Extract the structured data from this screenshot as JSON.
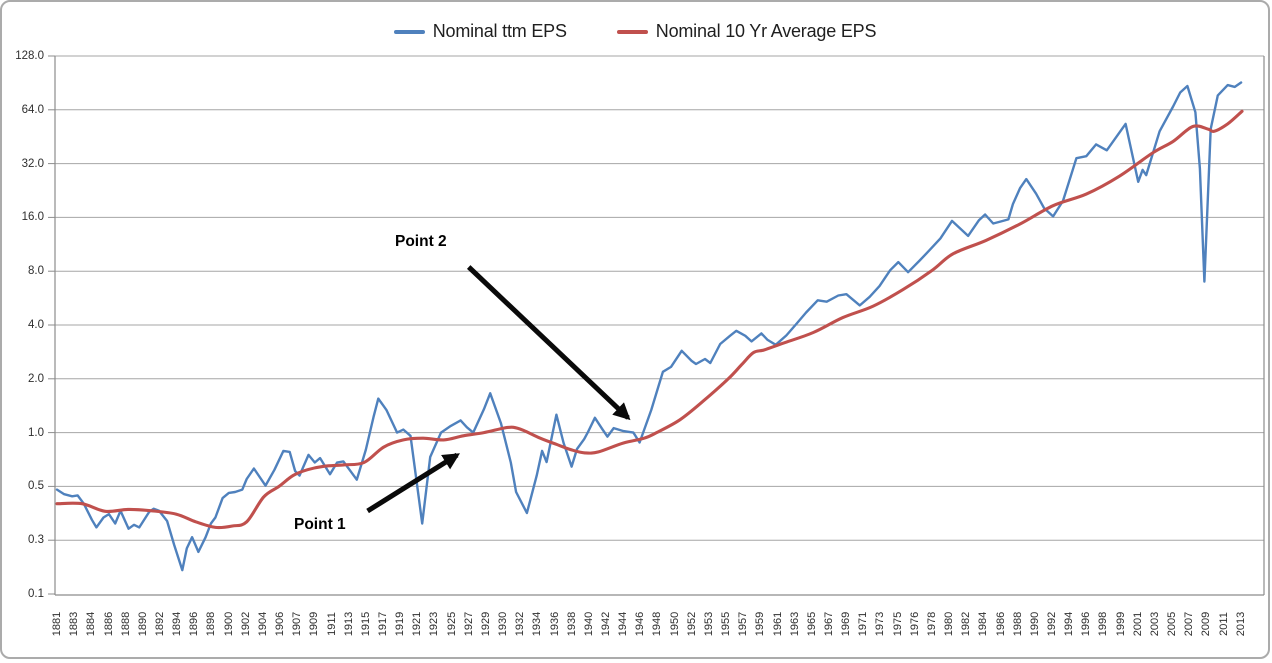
{
  "chart_data": {
    "type": "line",
    "title": "",
    "legend_position": "top",
    "grid": "horizontal-only",
    "x_axis": {
      "start_year": 1881,
      "end_year": 2013,
      "tick_labels": [
        "1881",
        "1883",
        "1884",
        "1886",
        "1888",
        "1890",
        "1892",
        "1894",
        "1896",
        "1898",
        "1900",
        "1902",
        "1904",
        "1906",
        "1907",
        "1909",
        "1911",
        "1913",
        "1915",
        "1917",
        "1919",
        "1921",
        "1923",
        "1925",
        "1927",
        "1929",
        "1930",
        "1932",
        "1934",
        "1936",
        "1938",
        "1940",
        "1942",
        "1944",
        "1946",
        "1948",
        "1950",
        "1952",
        "1953",
        "1955",
        "1957",
        "1959",
        "1961",
        "1963",
        "1965",
        "1967",
        "1969",
        "1971",
        "1973",
        "1975",
        "1976",
        "1978",
        "1980",
        "1982",
        "1984",
        "1986",
        "1988",
        "1990",
        "1992",
        "1994",
        "1996",
        "1998",
        "1999",
        "2001",
        "2003",
        "2005",
        "2007",
        "2009",
        "2011",
        "2013"
      ]
    },
    "y_axis": {
      "scale": "log2",
      "tick_labels": [
        "128.0",
        "64.0",
        "32.0",
        "16.0",
        "8.0",
        "4.0",
        "2.0",
        "1.0",
        "0.5",
        "0.3",
        "0.1"
      ],
      "tick_values": [
        128,
        64,
        32,
        16,
        8,
        4,
        2,
        1,
        0.5,
        0.25,
        0.125
      ],
      "ylim": [
        0.125,
        128
      ]
    },
    "series": [
      {
        "name": "Nominal ttm EPS",
        "color": "#4F81BD",
        "points": [
          [
            1881.0,
            0.48
          ],
          [
            1881.8,
            0.452
          ],
          [
            1882.7,
            0.44
          ],
          [
            1883.3,
            0.445
          ],
          [
            1884.0,
            0.4
          ],
          [
            1884.9,
            0.325
          ],
          [
            1885.4,
            0.295
          ],
          [
            1886.2,
            0.335
          ],
          [
            1886.8,
            0.35
          ],
          [
            1887.5,
            0.31
          ],
          [
            1888.1,
            0.365
          ],
          [
            1889.0,
            0.29
          ],
          [
            1889.6,
            0.305
          ],
          [
            1890.2,
            0.295
          ],
          [
            1891.3,
            0.36
          ],
          [
            1891.8,
            0.375
          ],
          [
            1892.4,
            0.365
          ],
          [
            1893.3,
            0.32
          ],
          [
            1894.1,
            0.235
          ],
          [
            1895.0,
            0.17
          ],
          [
            1895.5,
            0.225
          ],
          [
            1896.1,
            0.26
          ],
          [
            1896.8,
            0.215
          ],
          [
            1897.6,
            0.26
          ],
          [
            1898.2,
            0.31
          ],
          [
            1898.7,
            0.335
          ],
          [
            1899.5,
            0.43
          ],
          [
            1900.2,
            0.46
          ],
          [
            1900.9,
            0.465
          ],
          [
            1901.7,
            0.48
          ],
          [
            1902.2,
            0.55
          ],
          [
            1903.0,
            0.63
          ],
          [
            1904.3,
            0.505
          ],
          [
            1905.3,
            0.62
          ],
          [
            1906.3,
            0.79
          ],
          [
            1907.0,
            0.78
          ],
          [
            1907.6,
            0.61
          ],
          [
            1908.1,
            0.575
          ],
          [
            1909.1,
            0.75
          ],
          [
            1909.8,
            0.68
          ],
          [
            1910.4,
            0.72
          ],
          [
            1911.5,
            0.585
          ],
          [
            1912.3,
            0.68
          ],
          [
            1913.0,
            0.69
          ],
          [
            1914.5,
            0.545
          ],
          [
            1915.5,
            0.8
          ],
          [
            1916.4,
            1.24
          ],
          [
            1916.9,
            1.55
          ],
          [
            1917.8,
            1.34
          ],
          [
            1919.0,
            1.0
          ],
          [
            1919.7,
            1.04
          ],
          [
            1920.5,
            0.96
          ],
          [
            1921.4,
            0.44
          ],
          [
            1921.8,
            0.31
          ],
          [
            1922.7,
            0.73
          ],
          [
            1923.9,
            1.0
          ],
          [
            1925.0,
            1.09
          ],
          [
            1926.1,
            1.17
          ],
          [
            1926.8,
            1.07
          ],
          [
            1927.5,
            1.0
          ],
          [
            1928.7,
            1.35
          ],
          [
            1929.4,
            1.66
          ],
          [
            1930.6,
            1.13
          ],
          [
            1931.7,
            0.68
          ],
          [
            1932.3,
            0.465
          ],
          [
            1933.5,
            0.355
          ],
          [
            1934.6,
            0.575
          ],
          [
            1935.2,
            0.79
          ],
          [
            1935.7,
            0.685
          ],
          [
            1936.8,
            1.26
          ],
          [
            1937.6,
            0.875
          ],
          [
            1938.5,
            0.645
          ],
          [
            1939.1,
            0.81
          ],
          [
            1939.9,
            0.92
          ],
          [
            1940.3,
            1.0
          ],
          [
            1941.1,
            1.21
          ],
          [
            1941.9,
            1.05
          ],
          [
            1942.5,
            0.95
          ],
          [
            1943.2,
            1.06
          ],
          [
            1944.3,
            1.02
          ],
          [
            1945.4,
            1.0
          ],
          [
            1946.1,
            0.88
          ],
          [
            1947.4,
            1.34
          ],
          [
            1948.2,
            1.81
          ],
          [
            1948.7,
            2.19
          ],
          [
            1949.6,
            2.33
          ],
          [
            1950.8,
            2.87
          ],
          [
            1951.9,
            2.52
          ],
          [
            1952.4,
            2.42
          ],
          [
            1953.4,
            2.58
          ],
          [
            1954.0,
            2.45
          ],
          [
            1955.1,
            3.13
          ],
          [
            1956.2,
            3.48
          ],
          [
            1956.9,
            3.71
          ],
          [
            1957.9,
            3.48
          ],
          [
            1958.6,
            3.24
          ],
          [
            1959.7,
            3.59
          ],
          [
            1960.4,
            3.3
          ],
          [
            1961.3,
            3.1
          ],
          [
            1962.5,
            3.5
          ],
          [
            1963.6,
            4.05
          ],
          [
            1964.7,
            4.7
          ],
          [
            1966.0,
            5.5
          ],
          [
            1967.0,
            5.4
          ],
          [
            1968.3,
            5.85
          ],
          [
            1969.2,
            5.95
          ],
          [
            1970.7,
            5.15
          ],
          [
            1971.8,
            5.75
          ],
          [
            1972.9,
            6.6
          ],
          [
            1974.1,
            8.1
          ],
          [
            1975.0,
            9.0
          ],
          [
            1976.1,
            7.9
          ],
          [
            1977.4,
            9.2
          ],
          [
            1978.5,
            10.5
          ],
          [
            1979.7,
            12.2
          ],
          [
            1981.0,
            15.3
          ],
          [
            1982.8,
            12.6
          ],
          [
            1984.0,
            15.4
          ],
          [
            1984.7,
            16.6
          ],
          [
            1985.6,
            14.8
          ],
          [
            1986.5,
            15.2
          ],
          [
            1987.3,
            15.6
          ],
          [
            1987.8,
            19.0
          ],
          [
            1988.6,
            23.3
          ],
          [
            1989.3,
            26.2
          ],
          [
            1990.4,
            21.7
          ],
          [
            1991.3,
            18.0
          ],
          [
            1992.3,
            16.2
          ],
          [
            1993.4,
            19.8
          ],
          [
            1994.9,
            34.3
          ],
          [
            1996.0,
            35.2
          ],
          [
            1997.1,
            41.0
          ],
          [
            1998.3,
            38.0
          ],
          [
            1999.2,
            44.0
          ],
          [
            2000.4,
            53.4
          ],
          [
            2001.8,
            25.3
          ],
          [
            2002.3,
            29.5
          ],
          [
            2002.7,
            27.6
          ],
          [
            2004.2,
            48.5
          ],
          [
            2005.7,
            66.8
          ],
          [
            2006.5,
            80.0
          ],
          [
            2007.3,
            87.0
          ],
          [
            2008.2,
            62.0
          ],
          [
            2008.7,
            30.0
          ],
          [
            2009.2,
            7.0
          ],
          [
            2009.9,
            50.0
          ],
          [
            2010.7,
            77.0
          ],
          [
            2011.8,
            88.0
          ],
          [
            2012.6,
            86.0
          ],
          [
            2013.3,
            91.0
          ]
        ]
      },
      {
        "name": "Nominal 10 Yr Average EPS",
        "color": "#C0504D",
        "points": [
          [
            1881.0,
            0.4
          ],
          [
            1883.8,
            0.4
          ],
          [
            1886.4,
            0.363
          ],
          [
            1889.0,
            0.372
          ],
          [
            1891.6,
            0.365
          ],
          [
            1894.3,
            0.35
          ],
          [
            1896.5,
            0.317
          ],
          [
            1898.7,
            0.295
          ],
          [
            1900.6,
            0.3
          ],
          [
            1902.2,
            0.317
          ],
          [
            1904.1,
            0.437
          ],
          [
            1905.8,
            0.5
          ],
          [
            1907.4,
            0.576
          ],
          [
            1909.0,
            0.62
          ],
          [
            1910.8,
            0.648
          ],
          [
            1913.0,
            0.66
          ],
          [
            1915.3,
            0.68
          ],
          [
            1917.5,
            0.83
          ],
          [
            1919.7,
            0.91
          ],
          [
            1921.9,
            0.93
          ],
          [
            1924.2,
            0.91
          ],
          [
            1926.4,
            0.96
          ],
          [
            1928.7,
            1.0
          ],
          [
            1930.9,
            1.06
          ],
          [
            1932.0,
            1.07
          ],
          [
            1933.1,
            1.03
          ],
          [
            1935.0,
            0.93
          ],
          [
            1936.8,
            0.86
          ],
          [
            1938.5,
            0.8
          ],
          [
            1940.0,
            0.77
          ],
          [
            1941.5,
            0.78
          ],
          [
            1944.3,
            0.875
          ],
          [
            1946.6,
            0.93
          ],
          [
            1948.0,
            1.0
          ],
          [
            1950.6,
            1.18
          ],
          [
            1953.2,
            1.5
          ],
          [
            1956.0,
            2.0
          ],
          [
            1957.5,
            2.4
          ],
          [
            1958.8,
            2.8
          ],
          [
            1960.0,
            2.9
          ],
          [
            1962.1,
            3.16
          ],
          [
            1965.5,
            3.63
          ],
          [
            1968.8,
            4.4
          ],
          [
            1972.2,
            5.1
          ],
          [
            1975.5,
            6.3
          ],
          [
            1978.8,
            8.1
          ],
          [
            1981.1,
            10.0
          ],
          [
            1984.8,
            11.9
          ],
          [
            1988.6,
            14.7
          ],
          [
            1992.3,
            18.6
          ],
          [
            1996.0,
            21.6
          ],
          [
            1999.7,
            27.2
          ],
          [
            2003.4,
            36.7
          ],
          [
            2005.7,
            42.6
          ],
          [
            2007.9,
            51.6
          ],
          [
            2009.6,
            49.9
          ],
          [
            2010.3,
            48.5
          ],
          [
            2011.8,
            53.4
          ],
          [
            2013.4,
            62.8
          ]
        ]
      }
    ],
    "annotations": [
      {
        "text": "Point 1",
        "text_anchor": {
          "year": 1907.5,
          "value": 0.342
        },
        "arrow_from": {
          "year": 1915.7,
          "value": 0.364
        },
        "arrow_to": {
          "year": 1925.7,
          "value": 0.749
        }
      },
      {
        "text": "Point 2",
        "text_anchor": {
          "year": 1918.8,
          "value": 13.1
        },
        "arrow_from": {
          "year": 1927.0,
          "value": 8.45
        },
        "arrow_to": {
          "year": 1944.8,
          "value": 1.21
        }
      }
    ],
    "colors": {
      "gridline": "#A6A6A6",
      "axis_line": "#8C8C8C",
      "arrow": "#0A0A0A",
      "axis_text": "#2e2e2e",
      "legend_text": "#1f1f1f"
    }
  }
}
